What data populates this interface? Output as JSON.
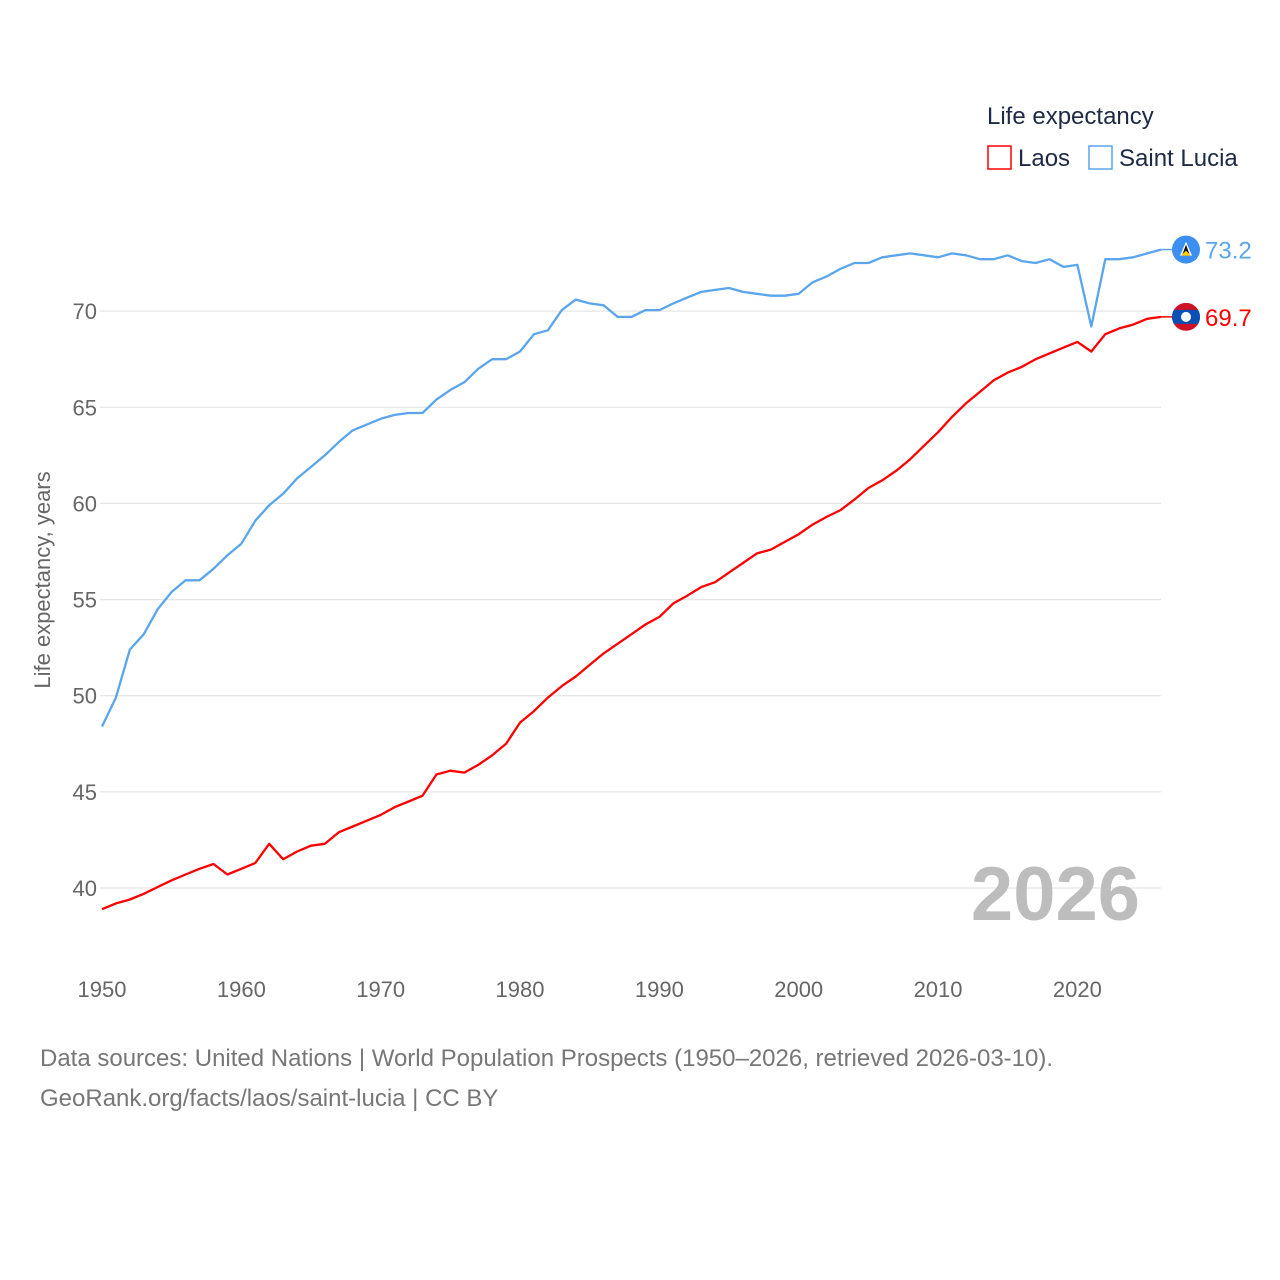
{
  "chart_data": {
    "type": "line",
    "title": "Life expectancy",
    "xlabel": "",
    "ylabel": "Life expectancy, years",
    "xlim": [
      1950,
      2026
    ],
    "ylim": [
      37,
      74
    ],
    "x_ticks": [
      "1950",
      "1960",
      "1970",
      "1980",
      "1990",
      "2000",
      "2010",
      "2020"
    ],
    "y_ticks": [
      "40",
      "45",
      "50",
      "55",
      "60",
      "65",
      "70"
    ],
    "grid": true,
    "legend_placement": "top-right",
    "watermark_year": "2026",
    "x": [
      1950,
      1951,
      1952,
      1953,
      1954,
      1955,
      1956,
      1957,
      1958,
      1959,
      1960,
      1961,
      1962,
      1963,
      1964,
      1965,
      1966,
      1967,
      1968,
      1969,
      1970,
      1971,
      1972,
      1973,
      1974,
      1975,
      1976,
      1977,
      1978,
      1979,
      1980,
      1981,
      1982,
      1983,
      1984,
      1985,
      1986,
      1987,
      1988,
      1989,
      1990,
      1991,
      1992,
      1993,
      1994,
      1995,
      1996,
      1997,
      1998,
      1999,
      2000,
      2001,
      2002,
      2003,
      2004,
      2005,
      2006,
      2007,
      2008,
      2009,
      2010,
      2011,
      2012,
      2013,
      2014,
      2015,
      2016,
      2017,
      2018,
      2019,
      2020,
      2021,
      2022,
      2023,
      2024,
      2025,
      2026
    ],
    "series": [
      {
        "name": "Laos",
        "color": "#ff0000",
        "end_label": "69.7",
        "flag": "laos",
        "values": [
          38.9,
          39.2,
          39.4,
          39.7,
          40.05,
          40.4,
          40.7,
          41.0,
          41.25,
          40.7,
          41.0,
          41.3,
          42.3,
          41.5,
          41.9,
          42.2,
          42.3,
          42.9,
          43.2,
          43.5,
          43.8,
          44.2,
          44.5,
          44.8,
          45.9,
          46.1,
          46.0,
          46.4,
          46.9,
          47.5,
          48.6,
          49.2,
          49.9,
          50.5,
          51.0,
          51.6,
          52.2,
          52.7,
          53.2,
          53.7,
          54.1,
          54.8,
          55.2,
          55.65,
          55.9,
          56.4,
          56.9,
          57.4,
          57.6,
          58.0,
          58.4,
          58.9,
          59.3,
          59.65,
          60.2,
          60.8,
          61.2,
          61.7,
          62.3,
          63.0,
          63.7,
          64.5,
          65.2,
          65.8,
          66.4,
          66.8,
          67.1,
          67.5,
          67.8,
          68.1,
          68.4,
          67.9,
          68.8,
          69.1,
          69.3,
          69.6,
          69.7
        ]
      },
      {
        "name": "Saint Lucia",
        "color": "#5aa5ec",
        "end_label": "73.2",
        "flag": "saint-lucia",
        "values": [
          48.4,
          49.9,
          52.4,
          53.2,
          54.5,
          55.4,
          56.0,
          56.0,
          56.6,
          57.3,
          57.9,
          59.1,
          59.9,
          60.5,
          61.3,
          61.9,
          62.5,
          63.2,
          63.8,
          64.1,
          64.4,
          64.6,
          64.7,
          64.7,
          65.4,
          65.9,
          66.3,
          67.0,
          67.5,
          67.5,
          67.9,
          68.8,
          69.0,
          70.05,
          70.6,
          70.4,
          70.3,
          69.7,
          69.7,
          70.05,
          70.05,
          70.4,
          70.7,
          71.0,
          71.1,
          71.2,
          71.0,
          70.9,
          70.8,
          70.8,
          70.9,
          71.5,
          71.8,
          72.2,
          72.5,
          72.5,
          72.8,
          72.9,
          73.0,
          72.9,
          72.8,
          73.0,
          72.9,
          72.7,
          72.7,
          72.9,
          72.6,
          72.5,
          72.7,
          72.3,
          72.4,
          69.2,
          72.7,
          72.7,
          72.8,
          73.0,
          73.2
        ]
      }
    ]
  },
  "footer": {
    "line1": "Data sources: United Nations | World Population Prospects (1950–2026, retrieved 2026-03-10).",
    "line2": "GeoRank.org/facts/laos/saint-lucia | CC BY"
  }
}
